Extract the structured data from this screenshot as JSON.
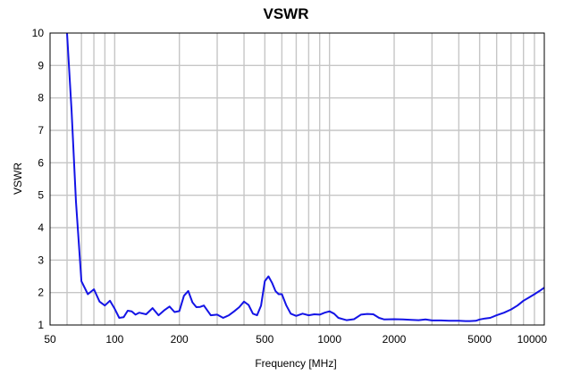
{
  "chart_data": {
    "type": "line",
    "title": "VSWR",
    "xlabel": "Frequency [MHz]",
    "ylabel": "VSWR",
    "x_scale": "log",
    "xlim": [
      50,
      10000
    ],
    "ylim": [
      1,
      10
    ],
    "grid": true,
    "line_color": "#1414e6",
    "x_tick_values": [
      50,
      100,
      200,
      500,
      1000,
      2000,
      5000,
      10000
    ],
    "x_tick_labels": [
      "50",
      "100",
      "200",
      "500",
      "1000",
      "2000",
      "5000",
      "10000"
    ],
    "y_tick_values": [
      1,
      2,
      3,
      4,
      5,
      6,
      7,
      8,
      9,
      10
    ],
    "y_tick_labels": [
      "1",
      "2",
      "3",
      "4",
      "5",
      "6",
      "7",
      "8",
      "9",
      "10"
    ],
    "series": [
      {
        "x": [
          60,
          63,
          66,
          70,
          75,
          80,
          85,
          90,
          95,
          100,
          105,
          110,
          115,
          120,
          125,
          130,
          140,
          150,
          160,
          170,
          180,
          190,
          200,
          210,
          220,
          230,
          240,
          250,
          260,
          280,
          300,
          320,
          340,
          360,
          380,
          400,
          420,
          440,
          460,
          480,
          500,
          520,
          540,
          560,
          580,
          600,
          630,
          660,
          700,
          750,
          800,
          850,
          900,
          950,
          1000,
          1050,
          1100,
          1200,
          1300,
          1400,
          1500,
          1600,
          1700,
          1800,
          2000,
          2200,
          2400,
          2600,
          2800,
          3000,
          3300,
          3600,
          4000,
          4300,
          4500,
          4800,
          5000,
          5300,
          5600,
          6000,
          6500,
          7000,
          7500,
          8000,
          8500,
          9000,
          9500,
          10000
        ],
        "y": [
          10,
          7.6,
          4.8,
          2.35,
          1.95,
          2.1,
          1.72,
          1.6,
          1.75,
          1.5,
          1.22,
          1.24,
          1.44,
          1.42,
          1.32,
          1.38,
          1.33,
          1.52,
          1.3,
          1.45,
          1.57,
          1.4,
          1.43,
          1.9,
          2.05,
          1.7,
          1.55,
          1.56,
          1.6,
          1.3,
          1.32,
          1.22,
          1.3,
          1.42,
          1.55,
          1.72,
          1.62,
          1.35,
          1.3,
          1.6,
          2.35,
          2.5,
          2.3,
          2.05,
          1.95,
          1.95,
          1.6,
          1.35,
          1.28,
          1.35,
          1.3,
          1.33,
          1.32,
          1.38,
          1.42,
          1.35,
          1.22,
          1.15,
          1.18,
          1.32,
          1.34,
          1.33,
          1.22,
          1.17,
          1.18,
          1.17,
          1.16,
          1.15,
          1.17,
          1.14,
          1.14,
          1.13,
          1.13,
          1.12,
          1.12,
          1.13,
          1.17,
          1.2,
          1.22,
          1.3,
          1.38,
          1.48,
          1.6,
          1.75,
          1.85,
          1.95,
          2.05,
          2.15
        ]
      }
    ]
  }
}
